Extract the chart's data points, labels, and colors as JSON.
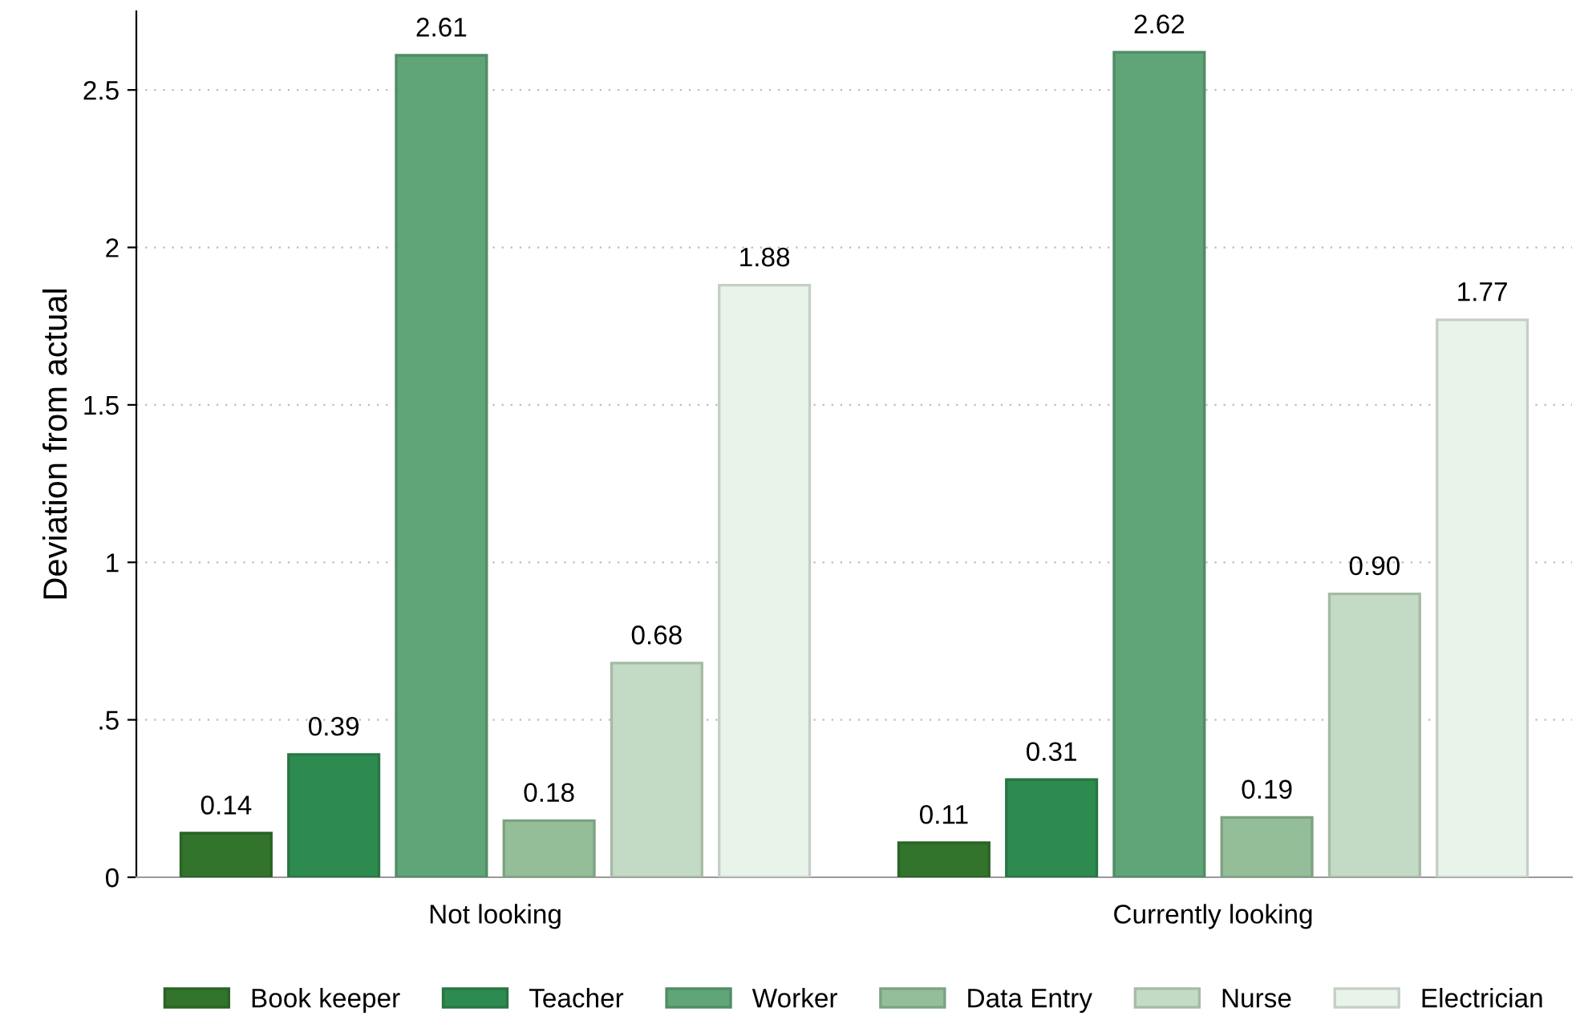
{
  "chart_data": {
    "type": "bar",
    "ylabel": "Deviation from actual",
    "categories": [
      "Not looking",
      "Currently looking"
    ],
    "series": [
      {
        "name": "Book keeper",
        "color": "#32742c",
        "values": [
          0.14,
          0.11
        ],
        "value_labels": [
          "0.14",
          "0.11"
        ]
      },
      {
        "name": "Teacher",
        "color": "#2e8b4f",
        "values": [
          0.39,
          0.31
        ],
        "value_labels": [
          "0.39",
          "0.31"
        ]
      },
      {
        "name": "Worker",
        "color": "#5fa577",
        "values": [
          2.61,
          2.62
        ],
        "value_labels": [
          "2.61",
          "2.62"
        ]
      },
      {
        "name": "Data Entry",
        "color": "#93be98",
        "values": [
          0.18,
          0.19
        ],
        "value_labels": [
          "0.18",
          "0.19"
        ]
      },
      {
        "name": "Nurse",
        "color": "#c3dbc5",
        "values": [
          0.68,
          0.9
        ],
        "value_labels": [
          "0.68",
          "0.90"
        ]
      },
      {
        "name": "Electrician",
        "color": "#e8f3e9",
        "values": [
          1.88,
          1.77
        ],
        "value_labels": [
          "1.88",
          "1.77"
        ]
      }
    ],
    "ylim": [
      0,
      2.75
    ],
    "yticks": [
      0,
      {
        "value": 0.5,
        "label": ".5"
      },
      1,
      1.5,
      2,
      2.5
    ],
    "grid": "y",
    "legend": "bottom"
  }
}
